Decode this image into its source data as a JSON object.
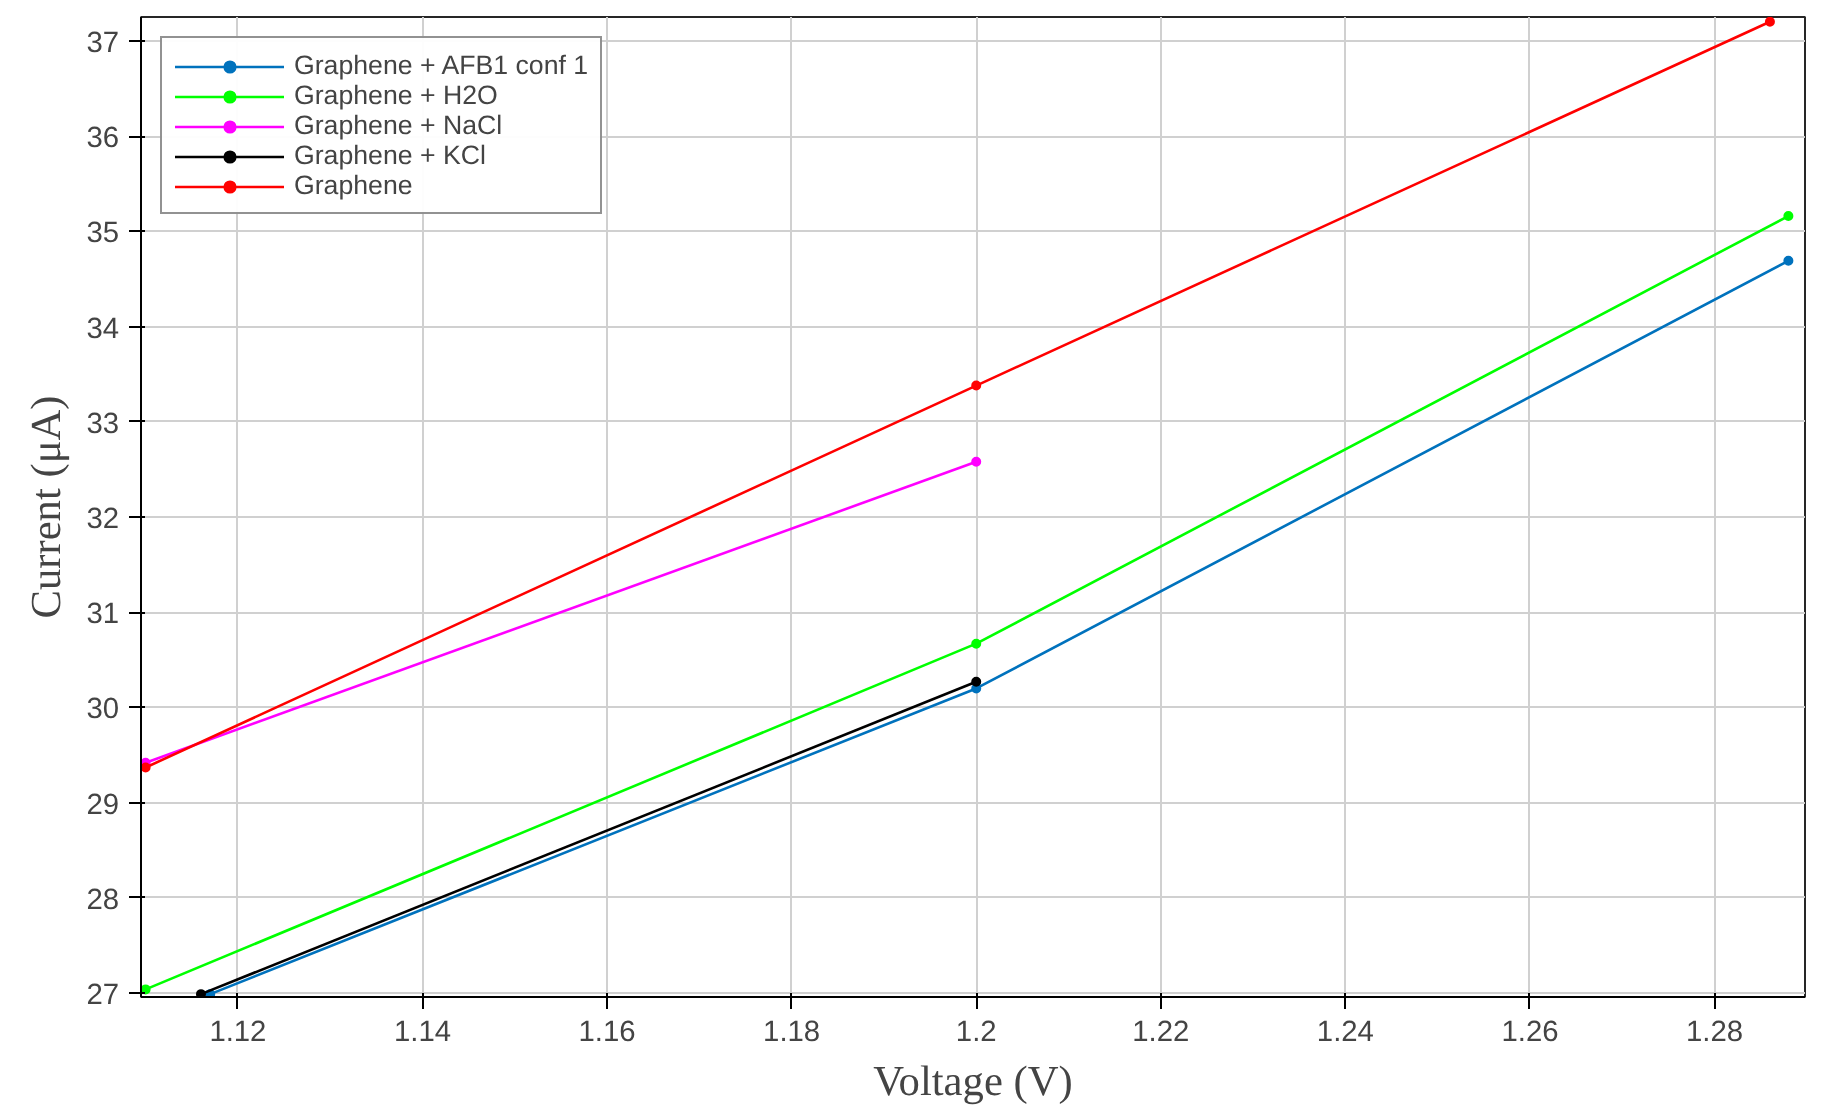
{
  "chart_data": {
    "type": "line",
    "xlabel": "Voltage (V)",
    "ylabel": "Current (μA)",
    "xlim": [
      1.1095,
      1.2898
    ],
    "ylim": [
      26.96,
      37.25
    ],
    "xticks": [
      1.12,
      1.14,
      1.16,
      1.18,
      1.2,
      1.22,
      1.24,
      1.26,
      1.28
    ],
    "yticks": [
      27,
      28,
      29,
      30,
      31,
      32,
      33,
      34,
      35,
      36,
      37
    ],
    "grid": true,
    "legend": "top left",
    "marker": "circle",
    "line_style": "solid",
    "series": [
      {
        "name": "Graphene + AFB1 conf 1",
        "color": "#0072bd",
        "x": [
          1.117,
          1.2,
          1.288
        ],
        "values": [
          26.99,
          30.2,
          34.69
        ]
      },
      {
        "name": "Graphene + H2O",
        "color": "#00ff00",
        "x": [
          1.11,
          1.2,
          1.288
        ],
        "values": [
          27.04,
          30.67,
          35.16
        ]
      },
      {
        "name": "Graphene + NaCl",
        "color": "#ff00ff",
        "x": [
          1.11,
          1.2
        ],
        "values": [
          29.42,
          32.58
        ]
      },
      {
        "name": "Graphene + KCl",
        "color": "#000000",
        "x": [
          1.116,
          1.2
        ],
        "values": [
          26.99,
          30.27
        ]
      },
      {
        "name": "Graphene",
        "color": "#ff0000",
        "x": [
          1.11,
          1.2,
          1.286
        ],
        "values": [
          29.37,
          33.38,
          37.2
        ]
      }
    ]
  }
}
